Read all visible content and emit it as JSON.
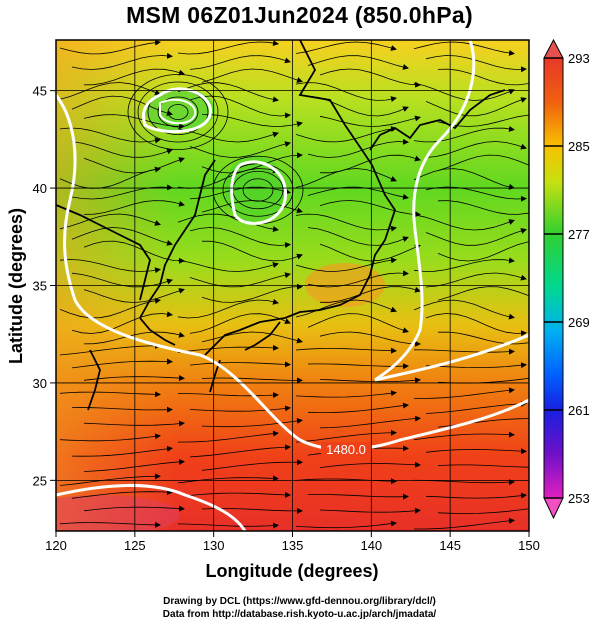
{
  "title": "MSM 06Z01Jun2024 (850.0hPa)",
  "x_axis": {
    "label": "Longitude (degrees)",
    "ticks": [
      120,
      125,
      130,
      135,
      140,
      145,
      150
    ],
    "range": [
      120,
      150
    ]
  },
  "y_axis": {
    "label": "Latitude  (degrees)",
    "ticks": [
      25,
      30,
      35,
      40,
      45
    ],
    "range": [
      22.4,
      47.6
    ]
  },
  "colorbar": {
    "ticks": [
      293,
      285,
      277,
      269,
      261,
      253
    ],
    "range": [
      253,
      293
    ],
    "colors": [
      "#ff40c0",
      "#c010d0",
      "#3010d0",
      "#0060ff",
      "#00c0f0",
      "#00e080",
      "#20d020",
      "#a0e010",
      "#f0e000",
      "#ff8000",
      "#f02010",
      "#e05060"
    ]
  },
  "contours": [
    {
      "label": "1480.0"
    }
  ],
  "credits": {
    "line1": "Drawing by DCL (https://www.gfd-dennou.org/library/dcl/)",
    "line2": "Data from http://database.rish.kyoto-u.ac.jp/arch/jmadata/"
  }
}
